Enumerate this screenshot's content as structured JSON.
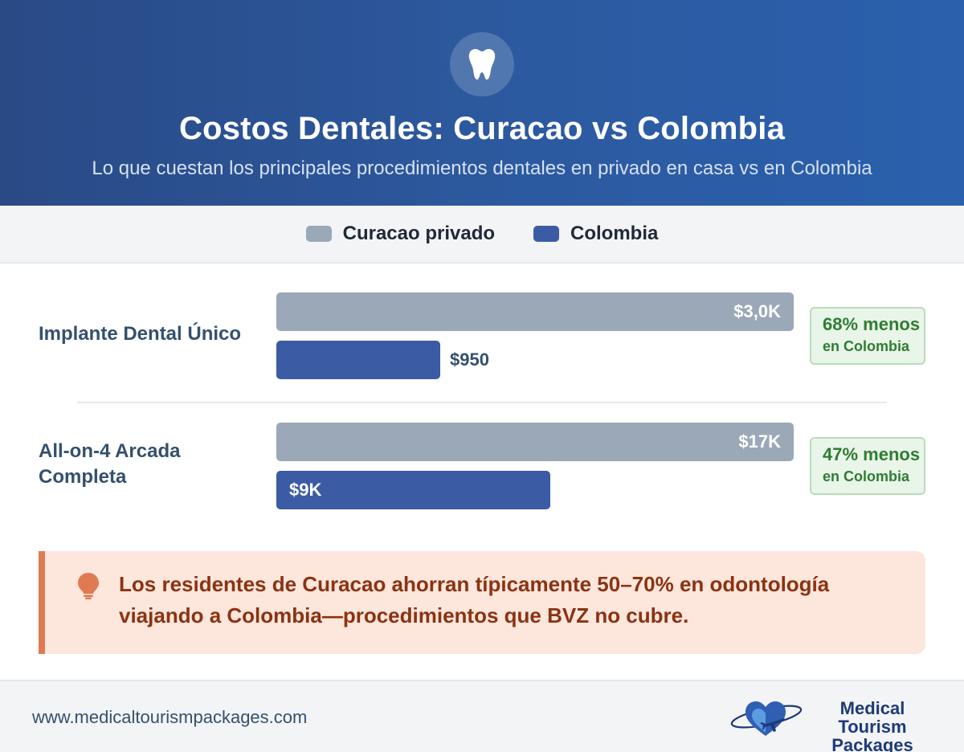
{
  "header": {
    "icon": "tooth-icon",
    "title": "Costos Dentales: Curacao vs Colombia",
    "subtitle": "Lo que cuestan los principales procedimientos dentales en privado en casa vs en Colombia"
  },
  "legend": {
    "items": [
      {
        "label": "Curacao privado",
        "color": "#9aa8b8"
      },
      {
        "label": "Colombia",
        "color": "#3b5ba5"
      }
    ]
  },
  "chart_data": {
    "type": "bar",
    "orientation": "horizontal",
    "title": "Costos Dentales: Curacao vs Colombia",
    "subtitle": "Lo que cuestan los principales procedimientos dentales en privado en casa vs en Colombia",
    "categories": [
      "Implante Dental Único",
      "All-on-4 Arcada Completa"
    ],
    "series": [
      {
        "name": "Curacao privado",
        "values": [
          3000,
          17000
        ],
        "labels": [
          "$3,0K",
          "$17K"
        ],
        "color": "#9aa8b8"
      },
      {
        "name": "Colombia",
        "values": [
          950,
          9000
        ],
        "labels": [
          "$950",
          "$9K"
        ],
        "color": "#3b5ba5"
      }
    ],
    "savings": [
      {
        "pct": "68% menos",
        "sub": "en Colombia"
      },
      {
        "pct": "47% menos",
        "sub": "en Colombia"
      }
    ],
    "scale": "each procedure scaled to its own Curacao price",
    "legend_position": "top-center"
  },
  "tip": {
    "icon": "lightbulb-icon",
    "text": "Los residentes de Curacao ahorran típicamente 50–70% en odontología viajando a Colombia—procedimientos que BVZ no cubre."
  },
  "footer": {
    "url": "www.medicaltourismpackages.com",
    "logo_text": "Medical Tourism Packages",
    "logo_icon": "heart-plane-icon"
  }
}
